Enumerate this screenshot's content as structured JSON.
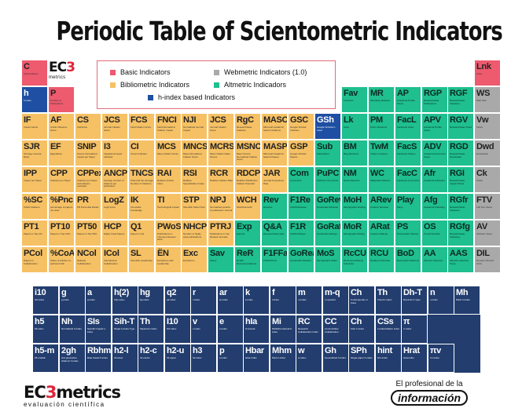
{
  "title": "Periodic Table of Scientometric Indicators",
  "logo": {
    "ec": "EC",
    "three": "3",
    "metrics": "metrics"
  },
  "legend": [
    {
      "label": "Basic Indicators",
      "color": "#ee5a6e"
    },
    {
      "label": "Webmetric Indicators (1.0)",
      "color": "#a9a9a9"
    },
    {
      "label": "Bibliometric Indicators",
      "color": "#f6c164"
    },
    {
      "label": "Altmetric Indicadors",
      "color": "#1fbf8f"
    },
    {
      "label": "h-index based Indicators",
      "color": "#1f4fa3"
    }
  ],
  "footer": {
    "brand_ec": "EC",
    "brand_three": "3",
    "brand_rest": "metrics",
    "brand_sub": "evaluación científica",
    "partner_line": "El profesional de la",
    "partner_name": "información"
  },
  "main_rows": [
    [
      {
        "c": 0,
        "t": "red",
        "s": "C",
        "n": "Total Citations"
      },
      {
        "c": 17,
        "t": "red",
        "s": "Lnk",
        "n": "Links"
      }
    ],
    [
      {
        "c": 0,
        "t": "blue",
        "s": "h",
        "n": "h-index"
      },
      {
        "c": 1,
        "t": "red",
        "s": "P",
        "n": "Number of Publications"
      },
      {
        "c": 12,
        "t": "green",
        "s": "Fav",
        "n": "Favorites"
      },
      {
        "c": 13,
        "t": "green",
        "s": "MR",
        "n": "Mendeley Readers"
      },
      {
        "c": 14,
        "t": "green",
        "s": "AP",
        "n": "Academia Profile Views"
      },
      {
        "c": 15,
        "t": "green",
        "s": "RGP",
        "n": "ResearchGate Publications"
      },
      {
        "c": 16,
        "t": "green",
        "s": "RGF",
        "n": "ResearchGate Followers"
      },
      {
        "c": 17,
        "t": "gray",
        "s": "WS",
        "n": "Web Size"
      }
    ],
    [
      {
        "c": 0,
        "t": "orange",
        "s": "IF",
        "n": "Impact Factor"
      },
      {
        "c": 1,
        "t": "orange",
        "s": "AF",
        "n": "Article Influence Score"
      },
      {
        "c": 2,
        "t": "orange",
        "s": "CS",
        "n": "CiteScore"
      },
      {
        "c": 3,
        "t": "orange",
        "s": "JCS",
        "n": "Journal Citation Score"
      },
      {
        "c": 4,
        "t": "orange",
        "s": "FCS",
        "n": "Field Citation Score"
      },
      {
        "c": 5,
        "t": "orange",
        "s": "FNCI",
        "n": "Field Normalized Citation Impact"
      },
      {
        "c": 6,
        "t": "orange",
        "s": "NJI",
        "n": "Normalized Journal Impact"
      },
      {
        "c": 7,
        "t": "orange",
        "s": "JCS",
        "n": "Journal Citation Score"
      },
      {
        "c": 8,
        "t": "orange",
        "s": "RgC",
        "n": "ResearchGate Citations"
      },
      {
        "c": 9,
        "t": "orange",
        "s": "MASC",
        "n": "Microsoft Academic Search Citations"
      },
      {
        "c": 10,
        "t": "orange",
        "s": "GSC",
        "n": "Google Scholar Citations"
      },
      {
        "c": 11,
        "t": "blue",
        "s": "GSh",
        "n": "Google Scholar h-index"
      },
      {
        "c": 12,
        "t": "green",
        "s": "Lk",
        "n": "Likes"
      },
      {
        "c": 13,
        "t": "green",
        "s": "PM",
        "n": "Policy Mentions"
      },
      {
        "c": 14,
        "t": "green",
        "s": "FacL",
        "n": "Facebook Likes"
      },
      {
        "c": 15,
        "t": "green",
        "s": "APV",
        "n": "Academia Profile Views"
      },
      {
        "c": 16,
        "t": "green",
        "s": "RGV",
        "n": "ResearchGate Views"
      },
      {
        "c": 17,
        "t": "gray",
        "s": "Vw",
        "n": "Views"
      }
    ],
    [
      {
        "c": 0,
        "t": "orange",
        "s": "SJR",
        "n": "Scimago Journal Rank"
      },
      {
        "c": 1,
        "t": "orange",
        "s": "EF",
        "n": "Eigenfactor"
      },
      {
        "c": 2,
        "t": "orange",
        "s": "SNIP",
        "n": "Source Normalized Impact per Paper"
      },
      {
        "c": 3,
        "t": "orange",
        "s": "I3",
        "n": "Integrated Impact Indicator"
      },
      {
        "c": 4,
        "t": "orange",
        "s": "CI",
        "n": "Crown Indicator"
      },
      {
        "c": 5,
        "t": "orange",
        "s": "MCS",
        "n": "Mean Citation Score"
      },
      {
        "c": 6,
        "t": "orange",
        "s": "MNCS",
        "n": "Mean Normalized Citation Score"
      },
      {
        "c": 7,
        "t": "orange",
        "s": "MCRS",
        "n": "Mean Citation Rate Scores"
      },
      {
        "c": 8,
        "t": "orange",
        "s": "MSNCS",
        "n": "Mean Source Normalized Citation Score"
      },
      {
        "c": 9,
        "t": "orange",
        "s": "MASP",
        "n": "Microsoft Academic Search Papers"
      },
      {
        "c": 10,
        "t": "orange",
        "s": "GSP",
        "n": "Google Scholar Papers"
      },
      {
        "c": 11,
        "t": "green",
        "s": "Sub",
        "n": "Subscribers"
      },
      {
        "c": 12,
        "t": "green",
        "s": "BM",
        "n": "Blog Mentions"
      },
      {
        "c": 13,
        "t": "green",
        "s": "TwM",
        "n": "Twitter mentions"
      },
      {
        "c": 14,
        "t": "green",
        "s": "FacS",
        "n": "Facebook Shares"
      },
      {
        "c": 15,
        "t": "green",
        "s": "ADV",
        "n": "Academia Document Views"
      },
      {
        "c": 16,
        "t": "green",
        "s": "RGD",
        "n": "ResearchGate Downloads"
      },
      {
        "c": 17,
        "t": "gray",
        "s": "Dwd",
        "n": "Downloads"
      }
    ],
    [
      {
        "c": 0,
        "t": "orange",
        "s": "IPP",
        "n": "Impact per Paper"
      },
      {
        "c": 1,
        "t": "orange",
        "s": "CPP",
        "n": "Citations per Paper"
      },
      {
        "c": 2,
        "t": "orange",
        "s": "CPPex",
        "n": "Citations per Paper self-citations excluded"
      },
      {
        "c": 3,
        "t": "orange",
        "s": "ANCP",
        "n": "Average number of citations per publication"
      },
      {
        "c": 4,
        "t": "orange",
        "s": "TNCS",
        "n": "Total and the Average Number of Citations"
      },
      {
        "c": 5,
        "t": "orange",
        "s": "RAI",
        "n": "Relative Activity Index"
      },
      {
        "c": 6,
        "t": "orange",
        "s": "RSI",
        "n": "Relative Specialization Index"
      },
      {
        "c": 7,
        "t": "orange",
        "s": "RCR",
        "n": "Relative Citation Rate"
      },
      {
        "c": 8,
        "t": "orange",
        "s": "RDCP",
        "n": "Relative Distribution Citation Potential"
      },
      {
        "c": 9,
        "t": "orange",
        "s": "JAR",
        "n": "Journal Acceptance Rate"
      },
      {
        "c": 10,
        "t": "green",
        "s": "Com",
        "n": "Comments"
      },
      {
        "c": 11,
        "t": "green",
        "s": "PuPC",
        "n": "PubPeer Comments"
      },
      {
        "c": 12,
        "t": "green",
        "s": "NM",
        "n": "News Mentions"
      },
      {
        "c": 13,
        "t": "green",
        "s": "WC",
        "n": "Wikipedia Citations"
      },
      {
        "c": 14,
        "t": "green",
        "s": "FacC",
        "n": "Facebook Comments"
      },
      {
        "c": 15,
        "t": "green",
        "s": "Afr",
        "n": "Academia Followers"
      },
      {
        "c": 16,
        "t": "green",
        "s": "RGI",
        "n": "ResearchGate Impact Points"
      },
      {
        "c": 17,
        "t": "gray",
        "s": "Ck",
        "n": "Clicks"
      }
    ],
    [
      {
        "c": 0,
        "t": "orange",
        "s": "%SC",
        "n": "%Self-Citations"
      },
      {
        "c": 1,
        "t": "orange",
        "s": "%Pnc",
        "n": "percentage of papers not cited"
      },
      {
        "c": 2,
        "t": "orange",
        "s": "PR",
        "n": "PR Percentile Ranks"
      },
      {
        "c": 3,
        "t": "orange",
        "s": "LogZ",
        "n": "LogZ score"
      },
      {
        "c": 4,
        "t": "orange",
        "s": "IK",
        "n": "Innovative Knowledge"
      },
      {
        "c": 5,
        "t": "orange",
        "s": "TI",
        "n": "Technological Impact"
      },
      {
        "c": 6,
        "t": "orange",
        "s": "STP",
        "n": "Scientific Talent Pool"
      },
      {
        "c": 7,
        "t": "orange",
        "s": "NPJ",
        "n": "Normalized position of publication Journal"
      },
      {
        "c": 8,
        "t": "orange",
        "s": "WCH",
        "n": "WorldCat Hold"
      },
      {
        "c": 9,
        "t": "green",
        "s": "Rev",
        "n": "Reviews"
      },
      {
        "c": 10,
        "t": "green",
        "s": "F1Re",
        "n": "F1000 Reviews"
      },
      {
        "c": 11,
        "t": "green",
        "s": "GoRev",
        "n": "Goodreads Reviews"
      },
      {
        "c": 12,
        "t": "green",
        "s": "MoH",
        "n": "Monographic Holding"
      },
      {
        "c": 13,
        "t": "green",
        "s": "ARev",
        "n": "Amazon Reviews"
      },
      {
        "c": 14,
        "t": "green",
        "s": "Play",
        "n": "Plays"
      },
      {
        "c": 15,
        "t": "green",
        "s": "Afg",
        "n": "Academia Following"
      },
      {
        "c": 16,
        "t": "green",
        "s": "RGfr",
        "n": "ResearchGate Followers"
      },
      {
        "c": 17,
        "t": "gray",
        "s": "FTV",
        "n": "Full Text Views"
      }
    ],
    [
      {
        "c": 0,
        "t": "orange",
        "s": "PT1",
        "n": "Papers in Top 1%"
      },
      {
        "c": 1,
        "t": "orange",
        "s": "PT10",
        "n": "Papers in Top 10%"
      },
      {
        "c": 2,
        "t": "orange",
        "s": "PT50",
        "n": "Papers in Top 50%"
      },
      {
        "c": 3,
        "t": "orange",
        "s": "HCP",
        "n": "Highly Cited Papers"
      },
      {
        "c": 4,
        "t": "orange",
        "s": "Q1",
        "n": "Papers in Q1"
      },
      {
        "c": 5,
        "t": "orange",
        "s": "PWoS",
        "n": "Publications in Thomson Reuters WoS"
      },
      {
        "c": 6,
        "t": "orange",
        "s": "NHCP",
        "n": "Number of highly cited publications"
      },
      {
        "c": 7,
        "t": "orange",
        "s": "PTRJ",
        "n": "Publications in Top Ranked Journals"
      },
      {
        "c": 8,
        "t": "green",
        "s": "Exp",
        "n": "Exports"
      },
      {
        "c": 9,
        "t": "green",
        "s": "Q&A",
        "n": "ResearchGate Q&A"
      },
      {
        "c": 10,
        "t": "green",
        "s": "F1R",
        "n": "F1000 Ratings"
      },
      {
        "c": 11,
        "t": "green",
        "s": "GoRat",
        "n": "Goodreads Ratings"
      },
      {
        "c": 12,
        "t": "green",
        "s": "MoR",
        "n": "Monographic Rating"
      },
      {
        "c": 13,
        "t": "green",
        "s": "ARat",
        "n": "Amazon Ratings"
      },
      {
        "c": 14,
        "t": "green",
        "s": "PS",
        "n": "Presentation Shares"
      },
      {
        "c": 15,
        "t": "green",
        "s": "OS",
        "n": "Overall Scholar"
      },
      {
        "c": 16,
        "t": "green",
        "s": "RGfg",
        "n": "ResearchGate Following"
      },
      {
        "c": 17,
        "t": "gray",
        "s": "AV",
        "n": "Abstract Views"
      }
    ],
    [
      {
        "c": 0,
        "t": "orange",
        "s": "PCol",
        "n": "Papers in Collaboration"
      },
      {
        "c": 1,
        "t": "orange",
        "s": "%CoA",
        "n": "Share of articles co-authored with"
      },
      {
        "c": 2,
        "t": "orange",
        "s": "NCol",
        "n": "National Collaboration"
      },
      {
        "c": 3,
        "t": "orange",
        "s": "ICol",
        "n": "International Collaboration"
      },
      {
        "c": 4,
        "t": "orange",
        "s": "SL",
        "n": "Scientific Leadership"
      },
      {
        "c": 5,
        "t": "orange",
        "s": "ËN",
        "n": "Excellence with Leadership"
      },
      {
        "c": 6,
        "t": "orange",
        "s": "Exc",
        "n": "Excellence"
      },
      {
        "c": 7,
        "t": "green",
        "s": "Sav",
        "n": "Saves"
      },
      {
        "c": 8,
        "t": "green",
        "s": "ReR",
        "n": "Reddit Recommendations"
      },
      {
        "c": 9,
        "t": "green",
        "s": "F1FFa",
        "n": "F1000 Prime"
      },
      {
        "c": 10,
        "t": "green",
        "s": "GoRea",
        "n": "Goodreads Readers"
      },
      {
        "c": 11,
        "t": "green",
        "s": "MoS",
        "n": "Monographic Sales"
      },
      {
        "c": 12,
        "t": "green",
        "s": "RcCU",
        "n": "Recommendations CiteULike"
      },
      {
        "c": 13,
        "t": "green",
        "s": "RCU",
        "n": "Readers CiteULike"
      },
      {
        "c": 14,
        "t": "green",
        "s": "BoD",
        "n": "Bookmarks Delicious"
      },
      {
        "c": 15,
        "t": "green",
        "s": "AA",
        "n": "Altmetric Attention"
      },
      {
        "c": 16,
        "t": "green",
        "s": "AAS",
        "n": "Altmetric Attention Score"
      },
      {
        "c": 17,
        "t": "gray",
        "s": "DIL",
        "n": "Domain Inbound Links"
      }
    ]
  ],
  "h_rows": [
    [
      {
        "c": 0,
        "s": "i10",
        "n": "i10-index"
      },
      {
        "c": 1,
        "s": "g",
        "n": "g-index"
      },
      {
        "c": 2,
        "s": "a",
        "n": "a-index"
      },
      {
        "c": 3,
        "s": "h(2)",
        "n": "h(2)-index"
      },
      {
        "c": 4,
        "s": "hg",
        "n": "hg-index"
      },
      {
        "c": 5,
        "s": "q2",
        "n": "q2-index"
      },
      {
        "c": 6,
        "s": "r",
        "n": "r-index"
      },
      {
        "c": 7,
        "s": "ar",
        "n": "ar-index"
      },
      {
        "c": 8,
        "s": "k",
        "n": "k-index"
      },
      {
        "c": 9,
        "s": "f",
        "n": "f-index"
      },
      {
        "c": 10,
        "s": "m",
        "n": "m-index"
      },
      {
        "c": 11,
        "s": "m-q",
        "n": "m quotient"
      },
      {
        "c": 12,
        "s": "Ch",
        "n": "Contemporary h-index"
      },
      {
        "c": 13,
        "s": "Th",
        "n": "Trend h-index"
      },
      {
        "c": 14,
        "s": "Dh-T",
        "n": "Dynamic h-Type"
      },
      {
        "c": 15,
        "s": "n",
        "n": "n-index"
      },
      {
        "c": 16,
        "s": "Mh",
        "n": "Mock h-index"
      }
    ],
    [
      {
        "c": 0,
        "s": "h5",
        "n": "h5-index"
      },
      {
        "c": 1,
        "s": "Nh",
        "n": "Normalized h-index"
      },
      {
        "c": 2,
        "s": "SIs",
        "n": "Specific Impact s-index"
      },
      {
        "c": 3,
        "s": "Sih-T",
        "n": "Single h-index Type"
      },
      {
        "c": 4,
        "s": "Th",
        "n": "Tapered h-index"
      },
      {
        "c": 5,
        "s": "I10",
        "n": "I10-index"
      },
      {
        "c": 6,
        "s": "v",
        "n": "v-index"
      },
      {
        "c": 7,
        "s": "e",
        "n": "e-index"
      },
      {
        "c": 8,
        "s": "hIa",
        "n": "hI annual"
      },
      {
        "c": 9,
        "s": "Mi",
        "n": "Multidimensional h-index"
      },
      {
        "c": 10,
        "s": "RC",
        "n": "Research Collaboration Index"
      },
      {
        "c": 11,
        "s": "CC",
        "n": "Communities Collaboration"
      },
      {
        "c": 12,
        "s": "Ch",
        "n": "Citer h-index"
      },
      {
        "c": 13,
        "s": "CSs",
        "n": "s-index/citation index"
      },
      {
        "c": 14,
        "s": "π",
        "n": "π-index"
      }
    ],
    [
      {
        "c": 0,
        "s": "h5-m",
        "n": "h5-median"
      },
      {
        "c": 1,
        "s": "2gh",
        "n": "2nd generation citations h-index"
      },
      {
        "c": 2,
        "s": "Rbhm",
        "n": "Rate based h-index"
      },
      {
        "c": 3,
        "s": "h2-l",
        "n": "h2-lower"
      },
      {
        "c": 4,
        "s": "h2-c",
        "n": "h2-center"
      },
      {
        "c": 5,
        "s": "h2-u",
        "n": "h2-upper"
      },
      {
        "c": 6,
        "s": "h3",
        "n": "h3-index"
      },
      {
        "c": 7,
        "s": "p",
        "n": "p-index"
      },
      {
        "c": 8,
        "s": "Hbar",
        "n": "Hbar-index"
      },
      {
        "c": 9,
        "s": "Mhm",
        "n": "Most h-index"
      },
      {
        "c": 10,
        "s": "w",
        "n": "w-index"
      },
      {
        "c": 11,
        "s": "Gh",
        "n": "Generalized h-index"
      },
      {
        "c": 12,
        "s": "SPh",
        "n": "Single paper h-index"
      },
      {
        "c": 13,
        "s": "hint",
        "n": "hint-index"
      },
      {
        "c": 14,
        "s": "Hrat",
        "n": "Hrat-index"
      },
      {
        "c": 15,
        "s": "πv",
        "n": "πv-index"
      }
    ]
  ]
}
